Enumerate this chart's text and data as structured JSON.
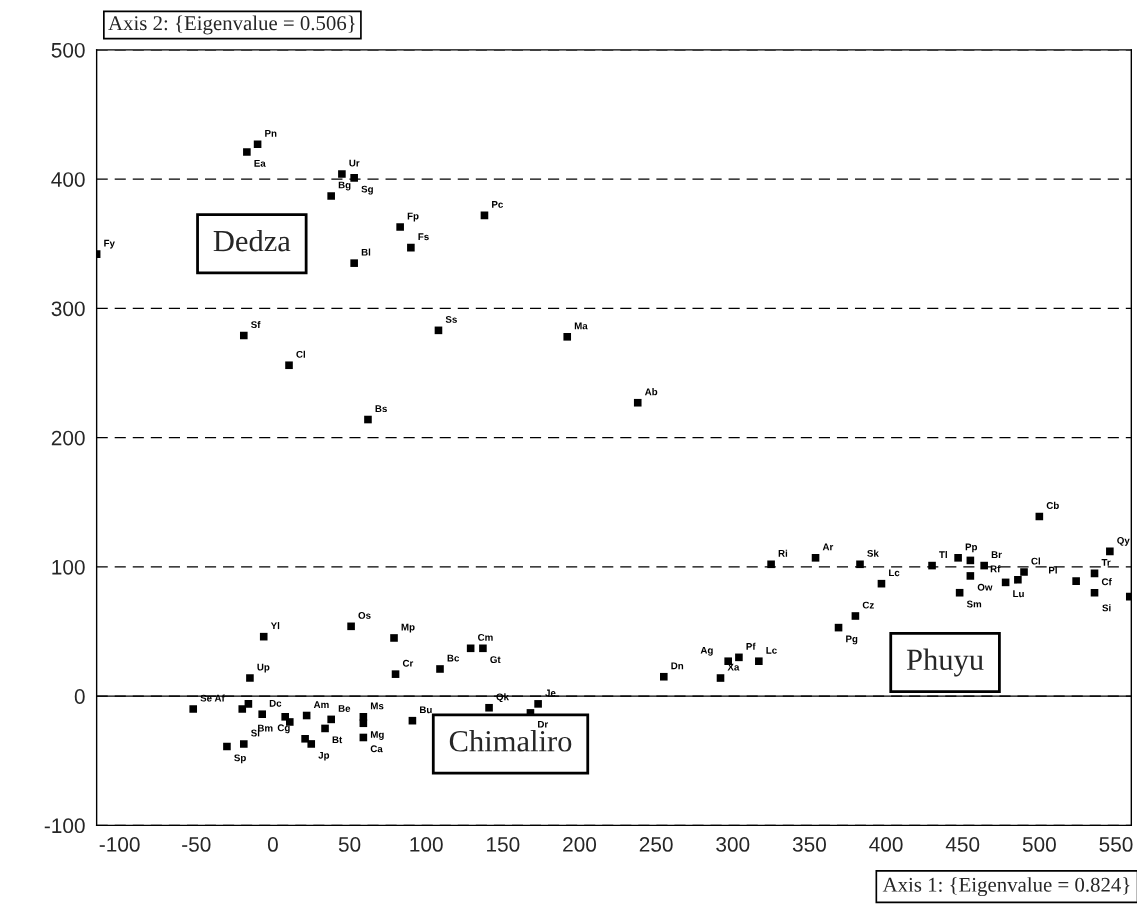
{
  "chart_data": {
    "type": "scatter",
    "xlabel": "Axis 1: {Eigenvalue = 0.824}",
    "ylabel": "Axis 2: {Eigenvalue = 0.506}",
    "xlim": [
      -115,
      560
    ],
    "xticks": [
      -100,
      -50,
      0,
      50,
      100,
      150,
      200,
      250,
      300,
      350,
      400,
      450,
      500,
      550
    ],
    "ylim": [
      -100,
      500
    ],
    "yticks": [
      -100,
      0,
      100,
      200,
      300,
      400,
      500
    ],
    "grid": "y",
    "line_style": "dashed",
    "marker": "square",
    "ref_lines": [
      {
        "axis": "y",
        "value": 0
      }
    ],
    "x": [
      -10,
      -17,
      45,
      53,
      38,
      83,
      90,
      53,
      -115,
      -19,
      10.5,
      108,
      138,
      192,
      238,
      62,
      -6,
      51,
      79,
      129,
      137,
      80,
      109,
      -15,
      -52,
      -20,
      -16,
      -7,
      8,
      11,
      22,
      38,
      34,
      59,
      59,
      91,
      141,
      173,
      168,
      -30,
      -19,
      21,
      25,
      59,
      255,
      292,
      297,
      304,
      317,
      369,
      380,
      325,
      354,
      383,
      397,
      430,
      447,
      455,
      464,
      455,
      448,
      478,
      486,
      490,
      500,
      524,
      536,
      536,
      546,
      559
    ],
    "series": [
      {
        "color": "#000000",
        "values": [
          427,
          421,
          404,
          401,
          387,
          363,
          347,
          335,
          342,
          279,
          256,
          283,
          372,
          278,
          227,
          214,
          46,
          54,
          45,
          37,
          37,
          17,
          21,
          14,
          -10,
          -10,
          -6,
          -14,
          -16,
          -20,
          -15,
          -18,
          -25,
          -16,
          -21,
          -19,
          -9,
          -6,
          -13,
          -39,
          -37,
          -33,
          -37,
          -32,
          15,
          14,
          27,
          30,
          27,
          53,
          62,
          102,
          107,
          102,
          87,
          101,
          107,
          105,
          101,
          93,
          80,
          88,
          90,
          96,
          139,
          89,
          95,
          80,
          112,
          77
        ]
      }
    ],
    "annotations": [
      {
        "text": "Pn",
        "x": -10,
        "y": 427
      },
      {
        "text": "Ea",
        "x": -17,
        "y": 421
      },
      {
        "text": "Ur",
        "x": 45,
        "y": 404
      },
      {
        "text": "Sg",
        "x": 53,
        "y": 401
      },
      {
        "text": "Bg",
        "x": 38,
        "y": 387
      },
      {
        "text": "Fp",
        "x": 83,
        "y": 363
      },
      {
        "text": "Fs",
        "x": 90,
        "y": 347
      },
      {
        "text": "Bl",
        "x": 53,
        "y": 335
      },
      {
        "text": "Fy",
        "x": -115,
        "y": 342
      },
      {
        "text": "Sf",
        "x": -19,
        "y": 279
      },
      {
        "text": "Cl",
        "x": 10.5,
        "y": 256
      },
      {
        "text": "Ss",
        "x": 108,
        "y": 283
      },
      {
        "text": "Pc",
        "x": 138,
        "y": 372
      },
      {
        "text": "Ma",
        "x": 192,
        "y": 278
      },
      {
        "text": "Ab",
        "x": 238,
        "y": 227
      },
      {
        "text": "Bs",
        "x": 62,
        "y": 214
      },
      {
        "text": "Yl",
        "x": -6,
        "y": 46
      },
      {
        "text": "Os",
        "x": 51,
        "y": 54
      },
      {
        "text": "Mp",
        "x": 79,
        "y": 45
      },
      {
        "text": "Cm",
        "x": 129,
        "y": 37
      },
      {
        "text": "Gt",
        "x": 137,
        "y": 37
      },
      {
        "text": "Cr",
        "x": 80,
        "y": 17
      },
      {
        "text": "Bc",
        "x": 109,
        "y": 21
      },
      {
        "text": "Up",
        "x": -15,
        "y": 14
      },
      {
        "text": "Se",
        "x": -52,
        "y": -10
      },
      {
        "text": "Af",
        "x": -20,
        "y": -10
      },
      {
        "text": "Dc",
        "x": -7,
        "y": -14
      },
      {
        "text": "Bm",
        "x": 8,
        "y": -16
      },
      {
        "text": "Am",
        "x": 22,
        "y": -15
      },
      {
        "text": "Be",
        "x": 38,
        "y": -18
      },
      {
        "text": "Bt",
        "x": 34,
        "y": -25
      },
      {
        "text": "Ms",
        "x": 59,
        "y": -16
      },
      {
        "text": "Mg",
        "x": 59,
        "y": -21
      },
      {
        "text": "Bu",
        "x": 91,
        "y": -19
      },
      {
        "text": "Qk",
        "x": 141,
        "y": -9
      },
      {
        "text": "Je",
        "x": 173,
        "y": -6
      },
      {
        "text": "Dr",
        "x": 168,
        "y": -13
      },
      {
        "text": "Sp",
        "x": -30,
        "y": -39
      },
      {
        "text": "Sl",
        "x": -19,
        "y": -37
      },
      {
        "text": "Cg",
        "x": 21,
        "y": -33
      },
      {
        "text": "Jp",
        "x": 25,
        "y": -37
      },
      {
        "text": "Ca",
        "x": 59,
        "y": -32
      },
      {
        "text": "Dn",
        "x": 255,
        "y": 15
      },
      {
        "text": "Xa",
        "x": 292,
        "y": 14
      },
      {
        "text": "Ag",
        "x": 297,
        "y": 27
      },
      {
        "text": "Pf",
        "x": 304,
        "y": 30
      },
      {
        "text": "Lc",
        "x": 317,
        "y": 27
      },
      {
        "text": "Pg",
        "x": 369,
        "y": 53
      },
      {
        "text": "Cz",
        "x": 380,
        "y": 62
      },
      {
        "text": "Ri",
        "x": 325,
        "y": 102
      },
      {
        "text": "Ar",
        "x": 354,
        "y": 107
      },
      {
        "text": "Sk",
        "x": 383,
        "y": 102
      },
      {
        "text": "Lc",
        "x": 397,
        "y": 87
      },
      {
        "text": "Tl",
        "x": 430,
        "y": 101
      },
      {
        "text": "Pp",
        "x": 447,
        "y": 107
      },
      {
        "text": "Br",
        "x": 464,
        "y": 101
      },
      {
        "text": "Ow",
        "x": 455,
        "y": 93
      },
      {
        "text": "Sm",
        "x": 448,
        "y": 80
      },
      {
        "text": "Lu",
        "x": 478,
        "y": 88
      },
      {
        "text": "Rf",
        "x": 486,
        "y": 90
      },
      {
        "text": "Cl",
        "x": 490,
        "y": 96
      },
      {
        "text": "Cb",
        "x": 500,
        "y": 139
      },
      {
        "text": "Pl",
        "x": 524,
        "y": 89
      },
      {
        "text": "Tr",
        "x": 536,
        "y": 95
      },
      {
        "text": "Cf",
        "x": 536,
        "y": 80
      },
      {
        "text": "Qy",
        "x": 546,
        "y": 112
      },
      {
        "text": "Si",
        "x": 559,
        "y": 77
      },
      "Dedza",
      "Chimaliro",
      "Phuyu"
    ]
  }
}
